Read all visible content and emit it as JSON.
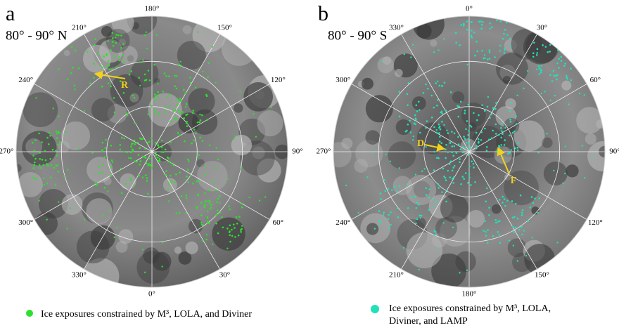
{
  "panels": [
    {
      "letter": "a",
      "title": "80° - 90° N",
      "longitudes": [
        "180°",
        "150°",
        "120°",
        "90°",
        "60°",
        "30°",
        "0°",
        "330°",
        "300°",
        "270°",
        "240°",
        "210°"
      ],
      "annotations": [
        "R"
      ],
      "legend": [
        "Ice exposures constrained by M³, LOLA, and Diviner"
      ]
    },
    {
      "letter": "b",
      "title": "80° - 90° S",
      "longitudes": [
        "0°",
        "30°",
        "60°",
        "90°",
        "120°",
        "150°",
        "180°",
        "210°",
        "240°",
        "270°",
        "300°",
        "330°"
      ],
      "annotations": [
        "D",
        "F"
      ],
      "legend": [
        "Ice exposures constrained by M³, LOLA,",
        "Diviner, and LAMP"
      ]
    }
  ]
}
